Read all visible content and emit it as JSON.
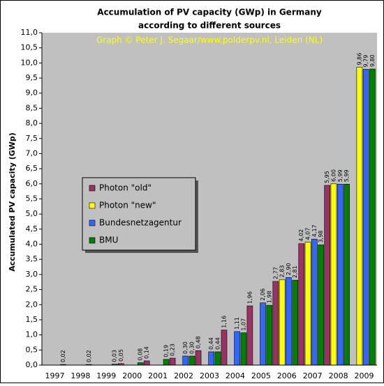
{
  "chart_data": {
    "type": "bar",
    "title": [
      "Accumulation of PV capacity (GWp) in Germany",
      "according to different sources"
    ],
    "credit": "Graph © Peter J. Segaar/www.polderpv.nl, Leiden (NL)",
    "y_label": "Accumulated PV capacity (GWp)",
    "categories": [
      "1997",
      "1998",
      "1999",
      "2000",
      "2001",
      "2002",
      "2003",
      "2004",
      "2005",
      "2006",
      "2007",
      "2008",
      "2009"
    ],
    "series": [
      {
        "name": "Photon \"old\"",
        "color": "#993366",
        "values": [
          null,
          null,
          null,
          0.05,
          0.14,
          0.23,
          0.48,
          1.16,
          1.96,
          2.77,
          4.02,
          5.95,
          null
        ],
        "value_labels": [
          null,
          null,
          null,
          "0,05",
          "0,14",
          "0,23",
          "0,48",
          "1,16",
          "1,96",
          "2,77",
          "4,02",
          "5,95",
          null
        ]
      },
      {
        "name": "Photon \"new\"",
        "color": "#ffff00",
        "values": [
          null,
          null,
          null,
          null,
          null,
          null,
          null,
          null,
          null,
          2.83,
          4.07,
          6.0,
          9.86
        ],
        "value_labels": [
          null,
          null,
          null,
          null,
          null,
          null,
          null,
          null,
          null,
          "2,83",
          "4,07",
          "6,00",
          "9,86"
        ]
      },
      {
        "name": "Bundesnetzagentur",
        "color": "#3366ff",
        "values": [
          null,
          null,
          null,
          null,
          null,
          0.3,
          0.44,
          1.11,
          2.06,
          2.9,
          4.17,
          5.99,
          9.79
        ],
        "value_labels": [
          null,
          null,
          null,
          null,
          null,
          "0,30",
          "0,44",
          "1,11",
          "2,06",
          "2,90",
          "4,17",
          "5,99",
          "9,79"
        ]
      },
      {
        "name": "BMU",
        "color": "#008000",
        "values": [
          0.02,
          0.02,
          0.03,
          0.08,
          0.19,
          0.3,
          0.44,
          1.07,
          1.98,
          2.81,
          3.98,
          5.99,
          9.8
        ],
        "value_labels": [
          "0,02",
          "0,02",
          "0,03",
          "0,08",
          "0,19",
          "0,30",
          "0,44",
          "1,07",
          "1,98",
          "2,81",
          "3,98",
          "5,99",
          "9,80"
        ]
      }
    ],
    "ylim": [
      0,
      11
    ],
    "yticks": [
      {
        "value": 0,
        "label": "0,0"
      },
      {
        "value": 0.5,
        "label": "0,5"
      },
      {
        "value": 1,
        "label": "1,0"
      },
      {
        "value": 1.5,
        "label": "1,5"
      },
      {
        "value": 2,
        "label": "2,0"
      },
      {
        "value": 2.5,
        "label": "2,5"
      },
      {
        "value": 3,
        "label": "3,0"
      },
      {
        "value": 3.5,
        "label": "3,5"
      },
      {
        "value": 4,
        "label": "4,0"
      },
      {
        "value": 4.5,
        "label": "4,5"
      },
      {
        "value": 5,
        "label": "5,0"
      },
      {
        "value": 5.5,
        "label": "5,5"
      },
      {
        "value": 6,
        "label": "6,0"
      },
      {
        "value": 6.5,
        "label": "6,5"
      },
      {
        "value": 7,
        "label": "7,0"
      },
      {
        "value": 7.5,
        "label": "7,5"
      },
      {
        "value": 8,
        "label": "8,0"
      },
      {
        "value": 8.5,
        "label": "8,5"
      },
      {
        "value": 9,
        "label": "9,0"
      },
      {
        "value": 9.5,
        "label": "9,5"
      },
      {
        "value": 10,
        "label": "10,0"
      },
      {
        "value": 10.5,
        "label": "10,5"
      },
      {
        "value": 11,
        "label": "11,0"
      }
    ],
    "grid": false,
    "legend": "left",
    "plot_background": "#c0c0c0"
  }
}
